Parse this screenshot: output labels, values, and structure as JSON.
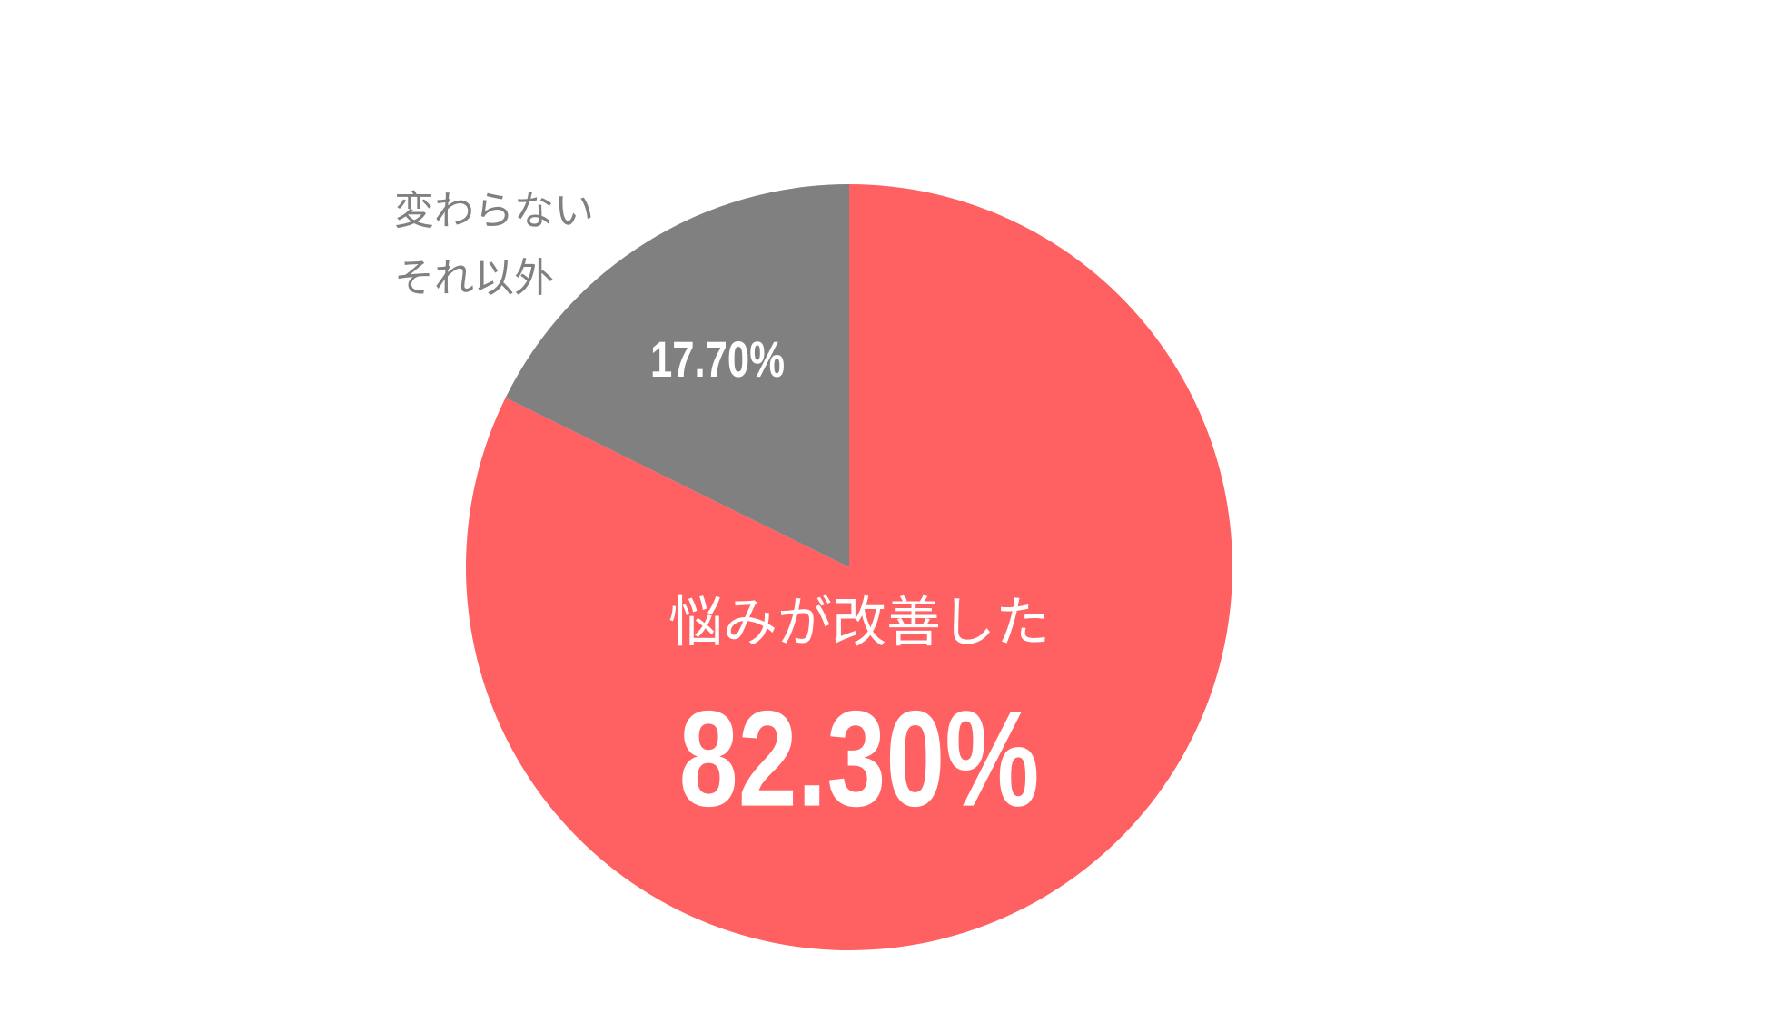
{
  "chart_data": {
    "type": "pie",
    "categories": [
      "悩みが改善した",
      "変わらない\nそれ以外"
    ],
    "values": [
      82.3,
      17.7
    ],
    "value_labels": [
      "82.30%",
      "17.70%"
    ],
    "colors": [
      "#ff6163",
      "#808080"
    ]
  }
}
